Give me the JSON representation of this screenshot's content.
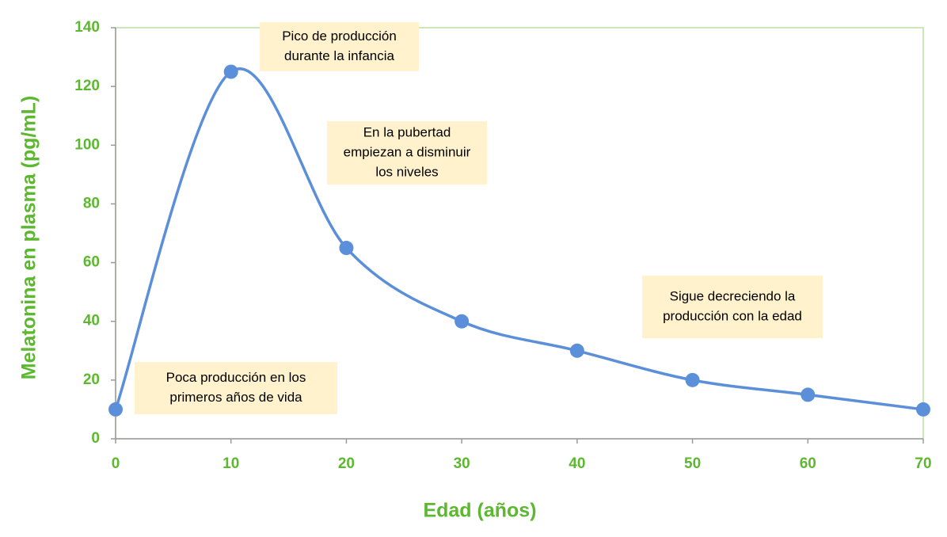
{
  "chart_data": {
    "type": "line",
    "x_label": "Edad (años)",
    "y_label": "Melatonina en plasma (pg/mL)",
    "x": [
      0,
      10,
      20,
      30,
      40,
      50,
      60,
      70
    ],
    "series": [
      {
        "color": "#5b8fd9",
        "values": [
          10,
          125,
          65,
          40,
          30,
          20,
          15,
          10
        ]
      }
    ],
    "xlim": [
      0,
      70
    ],
    "xticks": [
      0,
      10,
      20,
      30,
      40,
      50,
      60,
      70
    ],
    "ylim": [
      0,
      140
    ],
    "yticks": [
      0,
      20,
      40,
      60,
      80,
      100,
      120,
      140
    ],
    "smooth": true,
    "annotations": [
      [
        "Pico de producción",
        "durante la infancia"
      ],
      [
        "En la pubertad",
        "empiezan a disminuir",
        "los niveles"
      ],
      [
        "Sigue decreciendo la",
        "producción con la edad"
      ],
      [
        "Poca producción en los",
        "primeros años de vida"
      ]
    ]
  }
}
